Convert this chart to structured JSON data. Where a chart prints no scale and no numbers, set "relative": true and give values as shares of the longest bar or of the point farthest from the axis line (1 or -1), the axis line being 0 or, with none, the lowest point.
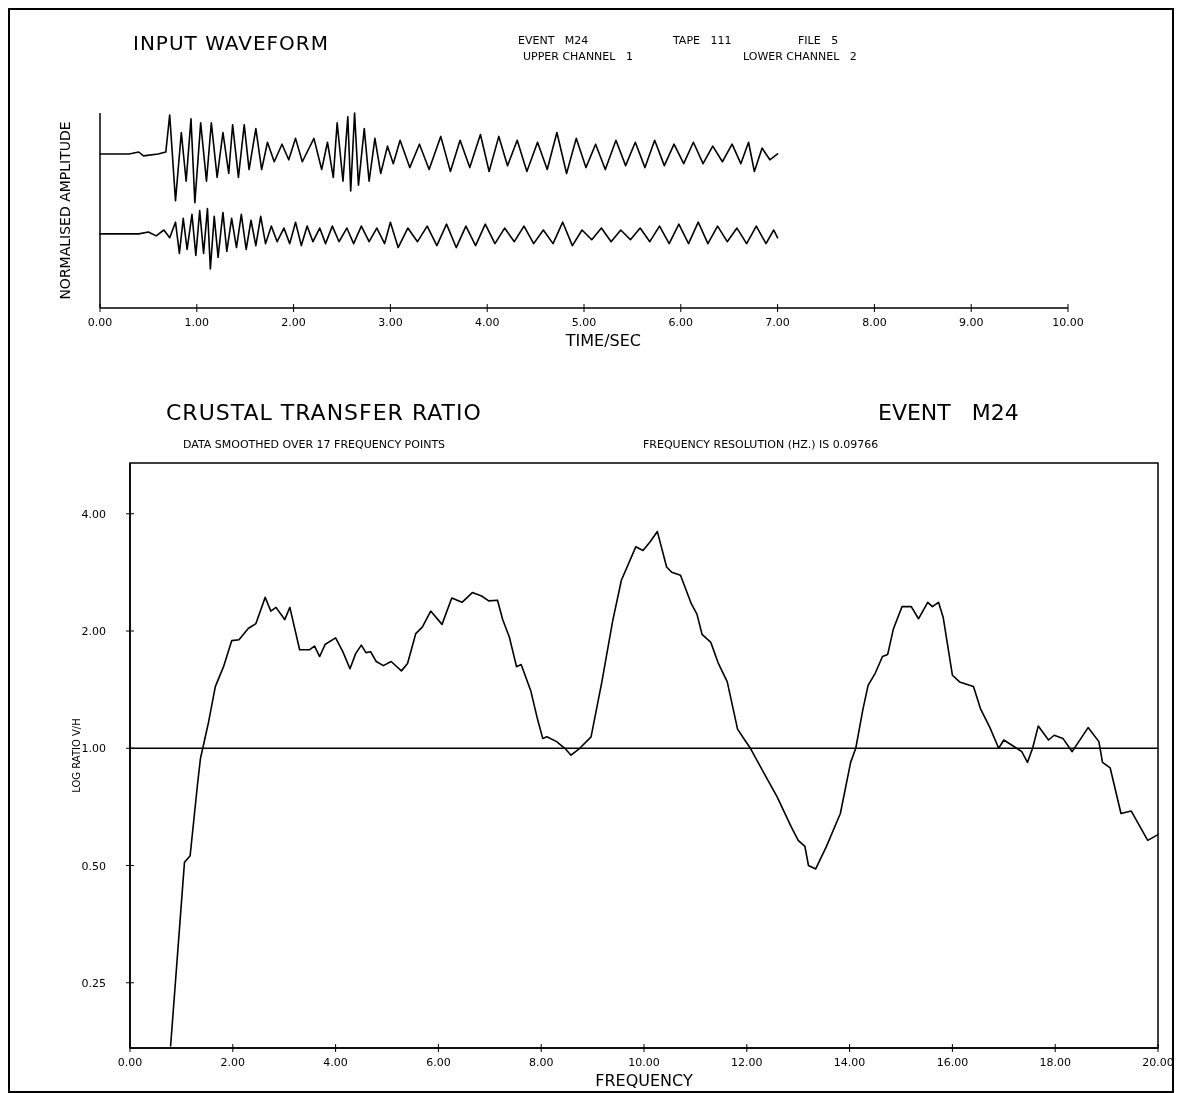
{
  "chart_data": [
    {
      "type": "line",
      "title": "INPUT WAVEFORM",
      "xlabel": "TIME/SEC",
      "ylabel": "NORMALISED AMPLITUDE",
      "relative": true,
      "tick_labels": "x",
      "line_style": "solid",
      "annotations": [
        "EVENT   M24",
        "TAPE   111",
        "FILE   5",
        "UPPER CHANNEL   1",
        "LOWER CHANNEL   2"
      ],
      "xlim": [
        0,
        10
      ],
      "xticks": [
        {
          "value": 0,
          "label": "0.00"
        },
        {
          "value": 1,
          "label": "1.00"
        },
        {
          "value": 2,
          "label": "2.00"
        },
        {
          "value": 3,
          "label": "3.00"
        },
        {
          "value": 4,
          "label": "4.00"
        },
        {
          "value": 5,
          "label": "5.00"
        },
        {
          "value": 6,
          "label": "6.00"
        },
        {
          "value": 7,
          "label": "7.00"
        },
        {
          "value": 8,
          "label": "8.00"
        },
        {
          "value": 9,
          "label": "9.00"
        },
        {
          "value": 10,
          "label": "10.00"
        }
      ],
      "series": [
        {
          "color": "#000000",
          "x": [
            0,
            0.3,
            0.4,
            0.45,
            0.6,
            0.68,
            0.72,
            0.78,
            0.84,
            0.89,
            0.94,
            0.98,
            1.04,
            1.1,
            1.15,
            1.21,
            1.27,
            1.33,
            1.37,
            1.43,
            1.49,
            1.54,
            1.61,
            1.67,
            1.73,
            1.8,
            1.88,
            1.95,
            2.02,
            2.09,
            2.21,
            2.29,
            2.35,
            2.41,
            2.45,
            2.51,
            2.56,
            2.59,
            2.63,
            2.67,
            2.73,
            2.78,
            2.84,
            2.9,
            2.97,
            3.03,
            3.1,
            3.2,
            3.3,
            3.4,
            3.52,
            3.62,
            3.72,
            3.82,
            3.93,
            4.02,
            4.12,
            4.21,
            4.31,
            4.41,
            4.52,
            4.62,
            4.72,
            4.82,
            4.92,
            5.02,
            5.12,
            5.22,
            5.33,
            5.43,
            5.53,
            5.63,
            5.73,
            5.83,
            5.93,
            6.03,
            6.13,
            6.23,
            6.33,
            6.43,
            6.53,
            6.62,
            6.7,
            6.76,
            6.84,
            6.92,
            7.0
          ],
          "values": [
            0.79,
            0.79,
            0.8,
            0.78,
            0.79,
            0.8,
            0.99,
            0.55,
            0.9,
            0.65,
            0.97,
            0.54,
            0.95,
            0.65,
            0.95,
            0.67,
            0.9,
            0.69,
            0.94,
            0.67,
            0.94,
            0.71,
            0.92,
            0.71,
            0.85,
            0.75,
            0.84,
            0.76,
            0.87,
            0.75,
            0.87,
            0.71,
            0.85,
            0.67,
            0.95,
            0.65,
            0.98,
            0.6,
            1.0,
            0.63,
            0.92,
            0.65,
            0.87,
            0.69,
            0.83,
            0.74,
            0.86,
            0.72,
            0.84,
            0.71,
            0.88,
            0.7,
            0.86,
            0.72,
            0.89,
            0.7,
            0.88,
            0.73,
            0.86,
            0.7,
            0.85,
            0.71,
            0.9,
            0.69,
            0.87,
            0.72,
            0.84,
            0.71,
            0.86,
            0.73,
            0.85,
            0.72,
            0.86,
            0.73,
            0.84,
            0.74,
            0.85,
            0.74,
            0.83,
            0.75,
            0.84,
            0.74,
            0.85,
            0.7,
            0.82,
            0.76,
            0.79
          ]
        },
        {
          "color": "#000000",
          "x": [
            0,
            0.4,
            0.5,
            0.58,
            0.66,
            0.72,
            0.78,
            0.82,
            0.86,
            0.9,
            0.95,
            0.99,
            1.03,
            1.07,
            1.11,
            1.14,
            1.18,
            1.22,
            1.27,
            1.31,
            1.36,
            1.41,
            1.46,
            1.51,
            1.56,
            1.61,
            1.66,
            1.71,
            1.77,
            1.83,
            1.9,
            1.96,
            2.02,
            2.08,
            2.14,
            2.2,
            2.27,
            2.33,
            2.4,
            2.47,
            2.55,
            2.62,
            2.7,
            2.78,
            2.86,
            2.94,
            3.0,
            3.08,
            3.18,
            3.28,
            3.38,
            3.48,
            3.58,
            3.68,
            3.78,
            3.88,
            3.98,
            4.08,
            4.18,
            4.28,
            4.38,
            4.48,
            4.58,
            4.68,
            4.78,
            4.88,
            4.98,
            5.08,
            5.18,
            5.28,
            5.38,
            5.48,
            5.58,
            5.68,
            5.78,
            5.88,
            5.98,
            6.08,
            6.18,
            6.28,
            6.38,
            6.48,
            6.58,
            6.68,
            6.78,
            6.88,
            6.96,
            7.0
          ],
          "values": [
            0.38,
            0.38,
            0.39,
            0.37,
            0.4,
            0.36,
            0.44,
            0.28,
            0.46,
            0.3,
            0.48,
            0.27,
            0.5,
            0.28,
            0.51,
            0.2,
            0.47,
            0.26,
            0.49,
            0.29,
            0.46,
            0.31,
            0.48,
            0.3,
            0.45,
            0.32,
            0.47,
            0.33,
            0.42,
            0.34,
            0.41,
            0.33,
            0.44,
            0.32,
            0.42,
            0.34,
            0.41,
            0.33,
            0.42,
            0.34,
            0.41,
            0.33,
            0.42,
            0.34,
            0.41,
            0.33,
            0.44,
            0.31,
            0.41,
            0.34,
            0.42,
            0.32,
            0.43,
            0.31,
            0.42,
            0.32,
            0.43,
            0.33,
            0.41,
            0.34,
            0.42,
            0.33,
            0.4,
            0.33,
            0.44,
            0.32,
            0.4,
            0.35,
            0.41,
            0.34,
            0.4,
            0.35,
            0.41,
            0.34,
            0.42,
            0.33,
            0.43,
            0.33,
            0.44,
            0.33,
            0.42,
            0.34,
            0.41,
            0.33,
            0.42,
            0.33,
            0.4,
            0.36
          ]
        }
      ]
    },
    {
      "type": "line",
      "title": "CRUSTAL TRANSFER RATIO",
      "xlabel": "FREQUENCY",
      "ylabel": "LOG RATIO V/H",
      "log": "y",
      "line_style": "solid",
      "annotations": [
        "EVENT   M24",
        "DATA SMOOTHED OVER 17 FREQUENCY POINTS",
        "FREQUENCY RESOLUTION (HZ.) IS 0.09766"
      ],
      "xlim": [
        0,
        20
      ],
      "xticks": [
        {
          "value": 0,
          "label": "0.00"
        },
        {
          "value": 2,
          "label": "2.00"
        },
        {
          "value": 4,
          "label": "4.00"
        },
        {
          "value": 6,
          "label": "6.00"
        },
        {
          "value": 8,
          "label": "8.00"
        },
        {
          "value": 10,
          "label": "10.00"
        },
        {
          "value": 12,
          "label": "12.00"
        },
        {
          "value": 14,
          "label": "14.00"
        },
        {
          "value": 16,
          "label": "16.00"
        },
        {
          "value": 18,
          "label": "18.00"
        },
        {
          "value": 20,
          "label": "20.00"
        }
      ],
      "ylim": [
        0.17,
        5.4
      ],
      "yticks": [
        0.25,
        {
          "value": 0.5,
          "label": "0.50"
        },
        {
          "value": 1,
          "label": "1.00"
        },
        {
          "value": 2,
          "label": "2.00"
        },
        {
          "value": 4,
          "label": "4.00"
        }
      ],
      "ref_lines": [
        {
          "axis": "y",
          "value": 1,
          "color": "#000000"
        }
      ],
      "series": [
        {
          "color": "#000000",
          "x": [
            0.79,
            1.06,
            1.17,
            1.31,
            1.37,
            1.53,
            1.66,
            1.82,
            1.98,
            2.12,
            2.3,
            2.45,
            2.63,
            2.74,
            2.84,
            3.01,
            3.11,
            3.3,
            3.49,
            3.59,
            3.69,
            3.8,
            4.0,
            4.14,
            4.28,
            4.39,
            4.5,
            4.59,
            4.68,
            4.79,
            4.93,
            5.08,
            5.28,
            5.4,
            5.56,
            5.69,
            5.85,
            6.07,
            6.26,
            6.46,
            6.66,
            6.84,
            6.98,
            7.15,
            7.25,
            7.38,
            7.52,
            7.61,
            7.8,
            7.92,
            8.03,
            8.11,
            8.3,
            8.46,
            8.58,
            8.75,
            8.97,
            9.18,
            9.39,
            9.56,
            9.84,
            9.98,
            10.12,
            10.26,
            10.44,
            10.54,
            10.71,
            10.92,
            11.03,
            11.13,
            11.3,
            11.44,
            11.62,
            11.82,
            11.96,
            12.07,
            12.32,
            12.59,
            12.86,
            13.0,
            13.13,
            13.2,
            13.34,
            13.55,
            13.82,
            14.02,
            14.12,
            14.26,
            14.36,
            14.5,
            14.64,
            14.74,
            14.85,
            15.02,
            15.2,
            15.34,
            15.52,
            15.61,
            15.73,
            15.82,
            16.0,
            16.14,
            16.41,
            16.55,
            16.73,
            16.9,
            17.0,
            17.25,
            17.35,
            17.46,
            17.56,
            17.67,
            17.87,
            17.98,
            18.15,
            18.33,
            18.64,
            18.85,
            18.92,
            19.07,
            19.28,
            19.48,
            19.8,
            20.0
          ],
          "values": [
            0.172,
            0.51,
            0.53,
            0.8,
            0.94,
            1.17,
            1.44,
            1.62,
            1.89,
            1.9,
            2.03,
            2.09,
            2.44,
            2.25,
            2.3,
            2.14,
            2.3,
            1.79,
            1.79,
            1.83,
            1.72,
            1.85,
            1.92,
            1.77,
            1.6,
            1.75,
            1.84,
            1.76,
            1.77,
            1.67,
            1.63,
            1.67,
            1.58,
            1.65,
            1.97,
            2.05,
            2.25,
            2.08,
            2.43,
            2.37,
            2.51,
            2.46,
            2.39,
            2.4,
            2.14,
            1.93,
            1.62,
            1.64,
            1.4,
            1.2,
            1.06,
            1.07,
            1.04,
            1.0,
            0.96,
            1.0,
            1.07,
            1.48,
            2.12,
            2.7,
            3.29,
            3.22,
            3.39,
            3.6,
            2.92,
            2.83,
            2.78,
            2.35,
            2.21,
            1.96,
            1.87,
            1.66,
            1.48,
            1.12,
            1.05,
            1.0,
            0.87,
            0.75,
            0.63,
            0.58,
            0.56,
            0.5,
            0.49,
            0.56,
            0.68,
            0.92,
            1.0,
            1.26,
            1.45,
            1.56,
            1.72,
            1.74,
            2.02,
            2.31,
            2.31,
            2.15,
            2.37,
            2.31,
            2.37,
            2.17,
            1.54,
            1.48,
            1.44,
            1.26,
            1.13,
            1.0,
            1.05,
            1.0,
            0.98,
            0.92,
            1.0,
            1.14,
            1.05,
            1.08,
            1.06,
            0.98,
            1.13,
            1.04,
            0.92,
            0.89,
            0.68,
            0.69,
            0.58,
            0.6
          ]
        }
      ]
    }
  ]
}
